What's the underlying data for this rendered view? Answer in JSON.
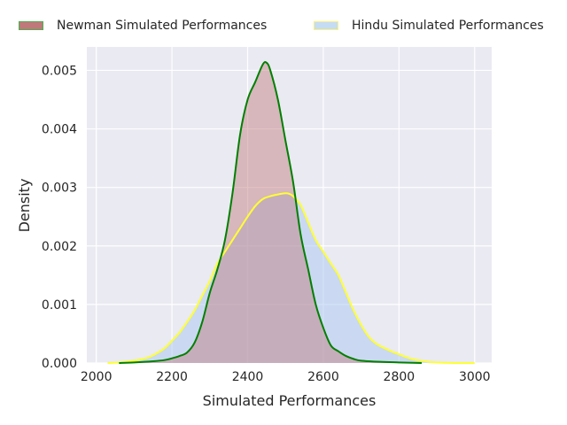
{
  "chart_data": {
    "type": "area",
    "title": "",
    "xlabel": "Simulated Performances",
    "ylabel": "Density",
    "xlim": [
      1975,
      3045
    ],
    "ylim": [
      0,
      0.0054
    ],
    "xticks": [
      2000,
      2200,
      2400,
      2600,
      2800,
      3000
    ],
    "xtick_labels": [
      "2000",
      "2200",
      "2400",
      "2600",
      "2800",
      "3000"
    ],
    "yticks": [
      0,
      0.001,
      0.002,
      0.003,
      0.004,
      0.005
    ],
    "ytick_labels": [
      "0.000",
      "0.001",
      "0.002",
      "0.003",
      "0.004",
      "0.005"
    ],
    "grid": true,
    "legend_position": "top",
    "series": [
      {
        "name": "Newman Simulated Performances",
        "line_color": "#008000",
        "fill_color": "#c0787a",
        "x": [
          2060,
          2100,
          2150,
          2180,
          2200,
          2220,
          2240,
          2260,
          2280,
          2300,
          2320,
          2340,
          2360,
          2380,
          2400,
          2420,
          2440,
          2450,
          2460,
          2480,
          2500,
          2520,
          2540,
          2560,
          2580,
          2600,
          2620,
          2640,
          2660,
          2680,
          2700,
          2750,
          2800,
          2860
        ],
        "y": [
          0,
          1e-05,
          3e-05,
          5e-05,
          8e-05,
          0.00012,
          0.00018,
          0.00035,
          0.0007,
          0.0012,
          0.0016,
          0.0021,
          0.0029,
          0.0039,
          0.0045,
          0.0048,
          0.0051,
          0.00513,
          0.005,
          0.0045,
          0.0038,
          0.0031,
          0.0022,
          0.0016,
          0.001,
          0.0006,
          0.0003,
          0.0002,
          0.00012,
          7e-05,
          4e-05,
          2e-05,
          1e-05,
          0
        ]
      },
      {
        "name": "Hindu Simulated Performances",
        "line_color": "#ffff33",
        "fill_color": "#aecbf0",
        "x": [
          2030,
          2060,
          2100,
          2130,
          2150,
          2180,
          2200,
          2220,
          2240,
          2260,
          2280,
          2300,
          2320,
          2340,
          2360,
          2380,
          2400,
          2420,
          2440,
          2460,
          2480,
          2500,
          2510,
          2520,
          2540,
          2560,
          2580,
          2600,
          2620,
          2640,
          2660,
          2680,
          2700,
          2720,
          2740,
          2760,
          2780,
          2800,
          2820,
          2840,
          2860,
          2880,
          2900,
          2950,
          3000
        ],
        "y": [
          0,
          1e-05,
          4e-05,
          8e-05,
          0.00013,
          0.00025,
          0.00038,
          0.00052,
          0.0007,
          0.0009,
          0.00115,
          0.0014,
          0.0017,
          0.0019,
          0.0021,
          0.0023,
          0.0025,
          0.00268,
          0.0028,
          0.00285,
          0.00288,
          0.0029,
          0.00289,
          0.00285,
          0.0027,
          0.0024,
          0.0021,
          0.0019,
          0.0017,
          0.0015,
          0.0012,
          0.0009,
          0.00065,
          0.00045,
          0.00033,
          0.00026,
          0.0002,
          0.00015,
          0.0001,
          6e-05,
          4e-05,
          2e-05,
          1e-05,
          0,
          0
        ]
      }
    ]
  }
}
